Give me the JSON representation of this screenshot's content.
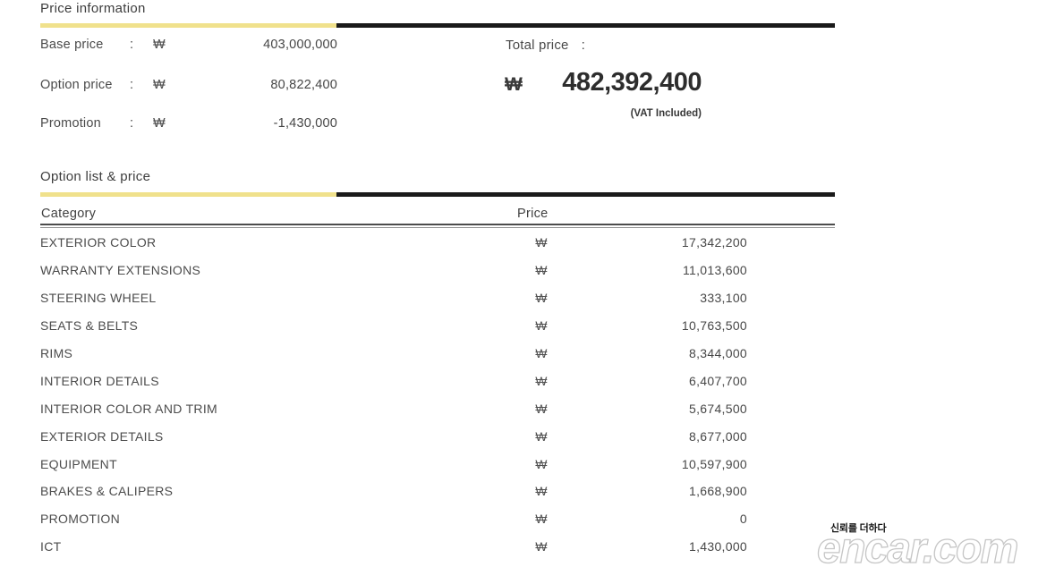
{
  "price_information": {
    "title": "Price information",
    "rows": [
      {
        "label": "Base price",
        "colon": ":",
        "currency": "₩",
        "value": "403,000,000"
      },
      {
        "label": "Option price",
        "colon": ":",
        "currency": "₩",
        "value": "80,822,400"
      },
      {
        "label": "Promotion",
        "colon": ":",
        "currency": "₩",
        "value": "-1,430,000"
      }
    ],
    "total": {
      "label": "Total price",
      "colon": ":",
      "currency": "₩",
      "value": "482,392,400",
      "note": "(VAT Included)"
    }
  },
  "option_list": {
    "title": "Option list & price",
    "columns": {
      "category": "Category",
      "price": "Price"
    },
    "currency": "₩",
    "rows": [
      {
        "category": "EXTERIOR COLOR",
        "price": "17,342,200"
      },
      {
        "category": "WARRANTY EXTENSIONS",
        "price": "11,013,600"
      },
      {
        "category": "STEERING WHEEL",
        "price": "333,100"
      },
      {
        "category": "SEATS & BELTS",
        "price": "10,763,500"
      },
      {
        "category": "RIMS",
        "price": "8,344,000"
      },
      {
        "category": "INTERIOR DETAILS",
        "price": "6,407,700"
      },
      {
        "category": "INTERIOR COLOR AND TRIM",
        "price": "5,674,500"
      },
      {
        "category": "EXTERIOR DETAILS",
        "price": "8,677,000"
      },
      {
        "category": "EQUIPMENT",
        "price": "10,597,900"
      },
      {
        "category": "BRAKES & CALIPERS",
        "price": "1,668,900"
      },
      {
        "category": "PROMOTION",
        "price": "0"
      },
      {
        "category": "ICT",
        "price": "1,430,000"
      }
    ]
  },
  "watermark": {
    "tagline": "신뢰를 더하다",
    "brand": "encar.com"
  },
  "colors": {
    "accent_yellow": "#f0e18c",
    "accent_black": "#1a1a1a",
    "text_dark": "#3d3d3d",
    "text_gray": "#4c4c4c"
  }
}
